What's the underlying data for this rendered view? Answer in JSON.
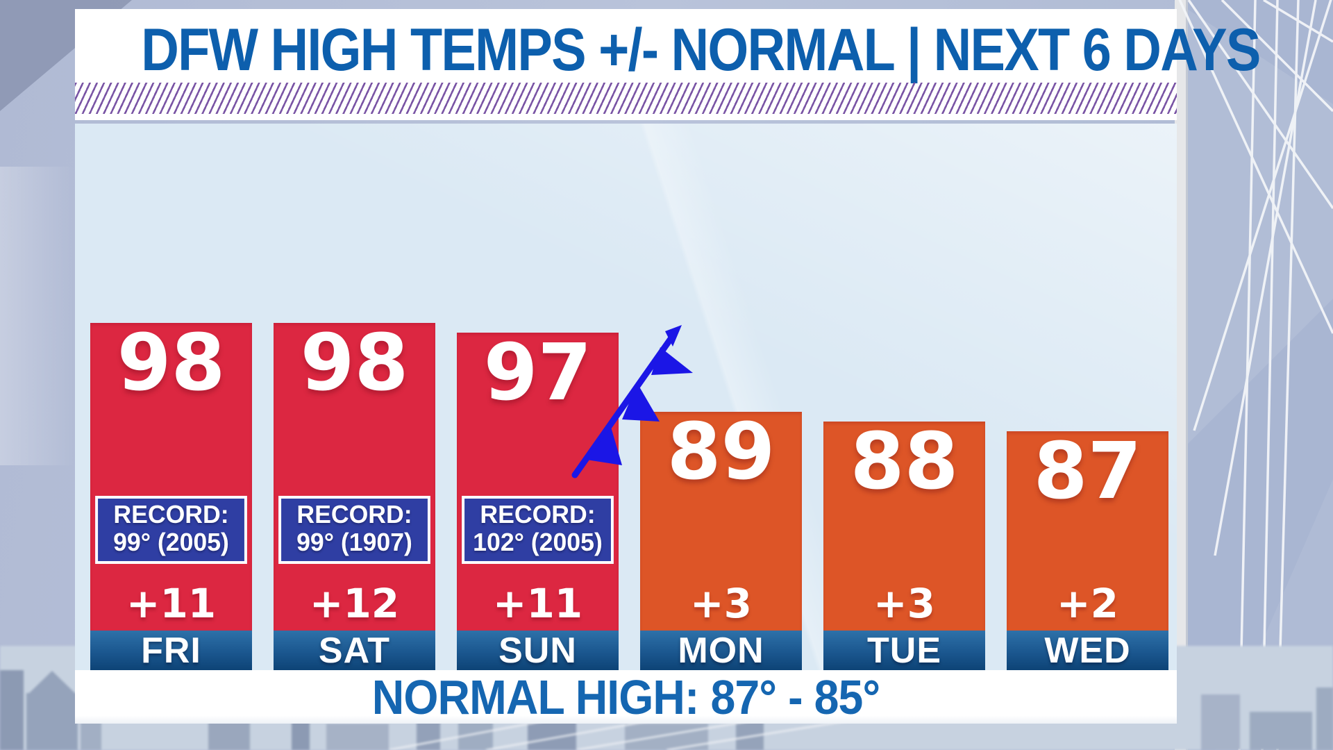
{
  "title": "DFW HIGH TEMPS +/- NORMAL | NEXT 6 DAYS",
  "footer": {
    "normal_high": "NORMAL HIGH: 87° - 85°"
  },
  "bars": [
    {
      "day": "FRI",
      "temp": "98",
      "delta": "+11",
      "record_label": "RECORD:",
      "record_value": "99° (2005)"
    },
    {
      "day": "SAT",
      "temp": "98",
      "delta": "+12",
      "record_label": "RECORD:",
      "record_value": "99° (1907)"
    },
    {
      "day": "SUN",
      "temp": "97",
      "delta": "+11",
      "record_label": "RECORD:",
      "record_value": "102° (2005)"
    },
    {
      "day": "MON",
      "temp": "89",
      "delta": "+3"
    },
    {
      "day": "TUE",
      "temp": "88",
      "delta": "+3"
    },
    {
      "day": "WED",
      "temp": "87",
      "delta": "+2"
    }
  ],
  "icons": {
    "cold_front": "cold-front-symbol"
  },
  "colors": {
    "title_blue": "#0d5fad",
    "hot_bar_red": "#dc2741",
    "warm_bar_orange": "#dd5527",
    "day_band_blue_top": "#2e71a9",
    "day_band_blue_bottom": "#0d4376",
    "record_box_blue": "#2f3ea3",
    "stripe_purple": "#7a55a5",
    "chart_background": "#dbe9f4",
    "cold_front_blue": "#1b16e6"
  },
  "chart_data": {
    "type": "bar",
    "title": "DFW HIGH TEMPS +/- NORMAL | NEXT 6 DAYS",
    "categories": [
      "FRI",
      "SAT",
      "SUN",
      "MON",
      "TUE",
      "WED"
    ],
    "series": [
      {
        "name": "forecast_high_f",
        "values": [
          98,
          98,
          97,
          89,
          88,
          87
        ]
      },
      {
        "name": "departure_from_normal_f",
        "values": [
          11,
          12,
          11,
          3,
          3,
          2
        ]
      }
    ],
    "records": [
      {
        "day": "FRI",
        "record_f": 99,
        "year": 2005
      },
      {
        "day": "SAT",
        "record_f": 99,
        "year": 1907
      },
      {
        "day": "SUN",
        "record_f": 102,
        "year": 2005
      }
    ],
    "annotations": [
      "NORMAL HIGH: 87° - 85°",
      "cold front symbol between SUN and MON bars"
    ],
    "legend_position": "none",
    "grid": false,
    "bar_color_rule": "red = well above normal (FRI-SUN), orange = slightly above normal (MON-WED)"
  }
}
